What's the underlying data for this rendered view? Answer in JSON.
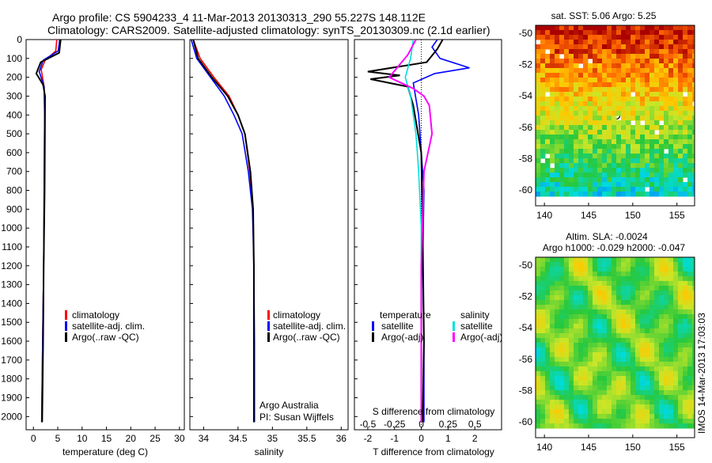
{
  "header": {
    "line1": "Argo profile: CS 5904233_4 11-Mar-2013 20130313_290 55.227S 148.112E",
    "line2": "Climatology: CARS2009. Satellite-adjusted climatology: synTS_20130309.nc (2.1d earlier)"
  },
  "colors": {
    "climatology": "#ff0000",
    "satellite_adj": "#0000ff",
    "argo": "#000000",
    "t_satellite": "#0000ff",
    "s_satellite": "#00e0e0",
    "s_argo": "#ff00ff"
  },
  "chart_data": [
    {
      "type": "line",
      "id": "temperature",
      "xlabel": "temperature (deg C)",
      "ylabel": "",
      "xlim": [
        -1.5,
        31
      ],
      "ylim": [
        2070,
        0
      ],
      "xticks": [
        "0",
        "5",
        "10",
        "15",
        "20",
        "25",
        "30"
      ],
      "yticks": [
        "0",
        "100",
        "200",
        "300",
        "400",
        "500",
        "600",
        "700",
        "800",
        "900",
        "1000",
        "1100",
        "1200",
        "1300",
        "1400",
        "1500",
        "1600",
        "1700",
        "1800",
        "1900",
        "2000"
      ],
      "legend": [
        "climatology",
        "satellite-adj. clim.",
        "Argo(..raw -QC)"
      ],
      "series": [
        {
          "name": "climatology",
          "x": [
            4.8,
            4.6,
            2.4,
            1.6,
            2.2,
            2.3,
            2.2,
            2.1,
            1.9,
            1.7
          ],
          "y": [
            0,
            60,
            110,
            160,
            250,
            400,
            800,
            1200,
            1600,
            2030
          ]
        },
        {
          "name": "satellite-adj. clim.",
          "x": [
            5.4,
            5.1,
            2.0,
            1.2,
            2.2,
            2.3,
            2.2,
            2.1,
            1.9,
            1.7
          ],
          "y": [
            0,
            60,
            110,
            170,
            250,
            400,
            800,
            1200,
            1600,
            2030
          ]
        },
        {
          "name": "Argo(..raw -QC)",
          "x": [
            5.6,
            5.3,
            1.5,
            0.6,
            1.3,
            2.0,
            2.4,
            2.3,
            2.1,
            2.0,
            1.8
          ],
          "y": [
            0,
            70,
            120,
            180,
            210,
            240,
            300,
            800,
            1200,
            1600,
            2030
          ]
        }
      ]
    },
    {
      "type": "line",
      "id": "salinity",
      "xlabel": "salinity",
      "ylabel": "",
      "xlim": [
        33.8,
        36.1
      ],
      "ylim": [
        2070,
        0
      ],
      "xticks": [
        "34",
        "34.5",
        "35",
        "35.5",
        "36"
      ],
      "legend": [
        "climatology",
        "satellite-adj. clim.",
        "Argo(..raw -QC)"
      ],
      "annotations": [
        "Argo Australia",
        "PI: Susan Wijffels"
      ],
      "series": [
        {
          "name": "climatology",
          "x": [
            33.85,
            33.95,
            34.15,
            34.37,
            34.5,
            34.6,
            34.67,
            34.72,
            34.73,
            34.73,
            34.73
          ],
          "y": [
            0,
            100,
            200,
            300,
            400,
            500,
            700,
            900,
            1200,
            1600,
            2030
          ]
        },
        {
          "name": "satellite-adj. clim.",
          "x": [
            33.82,
            33.9,
            34.1,
            34.3,
            34.44,
            34.56,
            34.65,
            34.71,
            34.73,
            34.74,
            34.74
          ],
          "y": [
            0,
            100,
            200,
            300,
            400,
            500,
            700,
            900,
            1200,
            1600,
            2030
          ]
        },
        {
          "name": "Argo(..raw -QC)",
          "x": [
            33.85,
            33.92,
            34.12,
            34.35,
            34.5,
            34.6,
            34.68,
            34.72,
            34.73,
            34.73,
            34.73
          ],
          "y": [
            0,
            100,
            200,
            300,
            400,
            500,
            700,
            900,
            1200,
            1600,
            2030
          ]
        }
      ]
    },
    {
      "type": "line",
      "id": "difference",
      "xlabel": "T difference from climatology",
      "xlabel_top": "S difference from climatology",
      "ylabel": "",
      "xlim": [
        -2.5,
        3.0
      ],
      "ylim": [
        2070,
        0
      ],
      "xticks": [
        "-2",
        "-1",
        "0",
        "1",
        "2"
      ],
      "sticks": [
        "-0.5",
        "-0.25",
        "0",
        "0.25",
        "0.5"
      ],
      "legend_temperature": {
        "title": "temperature",
        "items": [
          "satellite",
          "Argo(-adj)"
        ]
      },
      "legend_salinity": {
        "title": "salinity",
        "items": [
          "satellite",
          "Argo(-adj)"
        ]
      },
      "series": [
        {
          "name": "temperature satellite",
          "x": [
            0.6,
            0.4,
            0.7,
            1.8,
            0.5,
            -0.3,
            -0.1,
            0.1,
            0.05,
            0.1,
            0.1
          ],
          "y": [
            0,
            40,
            100,
            150,
            180,
            230,
            400,
            800,
            1200,
            1600,
            2030
          ]
        },
        {
          "name": "temperature Argo(-adj)",
          "x": [
            0.8,
            0.6,
            0.2,
            -2.0,
            -0.8,
            -1.9,
            -0.5,
            -0.3,
            0.0,
            0.05,
            0.1,
            0.05
          ],
          "y": [
            0,
            50,
            120,
            170,
            190,
            210,
            250,
            350,
            600,
            1000,
            1600,
            2030
          ]
        },
        {
          "name": "salinity satellite",
          "x": [
            -0.3,
            -0.4,
            -0.6,
            -0.4,
            -0.2,
            -0.1,
            0.0,
            0.0,
            0.0
          ],
          "y": [
            0,
            100,
            200,
            300,
            500,
            700,
            1000,
            1600,
            2030
          ]
        },
        {
          "name": "salinity Argo(-adj)",
          "x": [
            -0.2,
            -0.5,
            -1.2,
            -0.3,
            0.1,
            0.3,
            0.4,
            0.1,
            0.0,
            0.0
          ],
          "y": [
            0,
            80,
            200,
            260,
            300,
            350,
            500,
            700,
            1200,
            2030
          ]
        }
      ]
    },
    {
      "type": "heatmap",
      "id": "sst_map",
      "title": "sat. SST: 5.06 Argo: 5.25",
      "xlim": [
        139,
        157
      ],
      "ylim": [
        -61,
        -49.5
      ],
      "xticks": [
        "140",
        "145",
        "150",
        "155"
      ],
      "yticks": [
        "-50",
        "-52",
        "-54",
        "-56",
        "-58",
        "-60"
      ],
      "argo_position": [
        148.112,
        -55.227
      ]
    },
    {
      "type": "heatmap",
      "id": "sla_map",
      "title": "Altim. SLA: -0.0024",
      "subtitle": "Argo h1000: -0.029 h2000: -0.047",
      "xlim": [
        139,
        157
      ],
      "ylim": [
        -61,
        -49.5
      ],
      "xticks": [
        "140",
        "145",
        "150",
        "155"
      ],
      "yticks": [
        "-50",
        "-52",
        "-54",
        "-56",
        "-58",
        "-60"
      ],
      "argo_position": [
        148.112,
        -55.227
      ]
    }
  ],
  "footer_stamp": "IMOS 14-Mar-2013 17:03:03"
}
